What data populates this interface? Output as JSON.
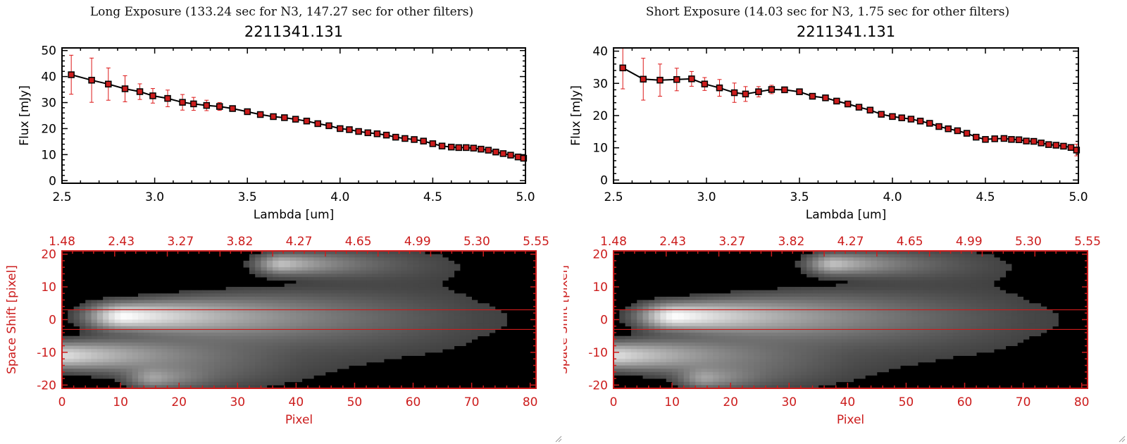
{
  "colors": {
    "axis_red": "#cc1c1c",
    "line": "#000000",
    "marker": "#cc1c1c",
    "errbar": "#dd1818",
    "guide": "#cc1c1c"
  },
  "panels": [
    {
      "title": "Long Exposure (133.24 sec for N3, 147.27 sec for other filters)",
      "icon": "resize-grip-icon"
    },
    {
      "title": "Short Exposure (14.03 sec for N3, 1.75 sec for other filters)",
      "icon": "resize-grip-icon"
    }
  ],
  "chart_data": [
    {
      "type": "line",
      "title": "2211341.131",
      "xlabel": "Lambda [um]",
      "ylabel": "Flux [mJy]",
      "xlim": [
        2.5,
        5.0
      ],
      "ylim": [
        -1,
        51
      ],
      "xticks": [
        2.5,
        3.0,
        3.5,
        4.0,
        4.5,
        5.0
      ],
      "xtick_labels": [
        "2.5",
        "3.0",
        "3.5",
        "4.0",
        "4.5",
        "5.0"
      ],
      "yticks": [
        0,
        10,
        20,
        30,
        40,
        50
      ],
      "ytick_labels": [
        "0",
        "10",
        "20",
        "30",
        "40",
        "50"
      ],
      "x": [
        2.55,
        2.66,
        2.75,
        2.84,
        2.92,
        2.99,
        3.07,
        3.15,
        3.21,
        3.28,
        3.35,
        3.42,
        3.5,
        3.57,
        3.64,
        3.7,
        3.76,
        3.82,
        3.88,
        3.94,
        4.0,
        4.05,
        4.1,
        4.15,
        4.2,
        4.25,
        4.3,
        4.35,
        4.4,
        4.45,
        4.5,
        4.55,
        4.6,
        4.64,
        4.68,
        4.72,
        4.76,
        4.8,
        4.84,
        4.88,
        4.92,
        4.96,
        4.99
      ],
      "y": [
        40.7,
        38.6,
        37.1,
        35.3,
        34.2,
        32.6,
        31.6,
        30.1,
        29.5,
        28.9,
        28.5,
        27.7,
        26.5,
        25.4,
        24.6,
        24.2,
        23.6,
        22.9,
        21.9,
        21.1,
        20.0,
        19.6,
        18.9,
        18.4,
        18.0,
        17.5,
        16.7,
        16.2,
        15.8,
        15.2,
        14.2,
        13.3,
        12.9,
        12.7,
        12.7,
        12.5,
        12.1,
        11.7,
        11.0,
        10.4,
        9.8,
        9.1,
        8.6
      ],
      "yerr": [
        7.5,
        8.5,
        6.2,
        5.0,
        3.0,
        2.8,
        3.2,
        3.0,
        2.5,
        2.0,
        1.5,
        1.0,
        0.8,
        0.7,
        0.7,
        0.6,
        0.6,
        0.6,
        0.6,
        0.5,
        0.5,
        0.5,
        0.5,
        0.5,
        0.5,
        0.5,
        0.5,
        0.5,
        0.5,
        0.5,
        0.5,
        0.5,
        0.5,
        0.5,
        0.5,
        0.5,
        0.5,
        0.5,
        0.5,
        0.5,
        0.5,
        0.5,
        0.6
      ]
    },
    {
      "type": "line",
      "title": "2211341.131",
      "xlabel": "Lambda [um]",
      "ylabel": "Flux [mJy]",
      "xlim": [
        2.5,
        5.0
      ],
      "ylim": [
        -1,
        41
      ],
      "xticks": [
        2.5,
        3.0,
        3.5,
        4.0,
        4.5,
        5.0
      ],
      "xtick_labels": [
        "2.5",
        "3.0",
        "3.5",
        "4.0",
        "4.5",
        "5.0"
      ],
      "yticks": [
        0,
        10,
        20,
        30,
        40
      ],
      "ytick_labels": [
        "0",
        "10",
        "20",
        "30",
        "40"
      ],
      "x": [
        2.55,
        2.66,
        2.75,
        2.84,
        2.92,
        2.99,
        3.07,
        3.15,
        3.21,
        3.28,
        3.35,
        3.42,
        3.5,
        3.57,
        3.64,
        3.7,
        3.76,
        3.82,
        3.88,
        3.94,
        4.0,
        4.05,
        4.1,
        4.15,
        4.2,
        4.25,
        4.3,
        4.35,
        4.4,
        4.45,
        4.5,
        4.55,
        4.6,
        4.64,
        4.68,
        4.72,
        4.76,
        4.8,
        4.84,
        4.88,
        4.92,
        4.96,
        4.99
      ],
      "y": [
        34.8,
        31.3,
        31.0,
        31.2,
        31.4,
        29.8,
        28.6,
        27.1,
        26.7,
        27.4,
        28.1,
        28.0,
        27.4,
        26.0,
        25.5,
        24.5,
        23.6,
        22.6,
        21.7,
        20.4,
        19.7,
        19.3,
        18.9,
        18.3,
        17.6,
        16.6,
        15.9,
        15.3,
        14.5,
        13.3,
        12.6,
        12.8,
        12.9,
        12.6,
        12.5,
        12.1,
        12.0,
        11.5,
        11.0,
        10.8,
        10.5,
        10.1,
        9.3
      ],
      "yerr": [
        6.5,
        6.5,
        5.0,
        3.5,
        2.3,
        2.0,
        2.6,
        3.0,
        2.3,
        1.6,
        1.3,
        0.8,
        0.7,
        0.6,
        0.5,
        0.5,
        0.5,
        0.5,
        0.5,
        0.5,
        0.5,
        0.5,
        0.5,
        0.5,
        0.5,
        0.5,
        0.5,
        0.5,
        0.5,
        0.5,
        0.5,
        0.5,
        0.5,
        0.5,
        0.5,
        0.5,
        0.5,
        0.5,
        0.5,
        0.5,
        0.5,
        0.5,
        1.8
      ]
    },
    {
      "type": "heatmap",
      "xlabel": "Pixel",
      "ylabel": "Space Shift [pixel]",
      "xlim": [
        0,
        81
      ],
      "ylim": [
        -21,
        21
      ],
      "xticks": [
        0,
        10,
        20,
        30,
        40,
        50,
        60,
        70,
        80
      ],
      "xtick_labels": [
        "0",
        "10",
        "20",
        "30",
        "40",
        "50",
        "60",
        "70",
        "80"
      ],
      "yticks": [
        -20,
        -10,
        0,
        10,
        20
      ],
      "ytick_labels": [
        "-20",
        "-10",
        "0",
        "10",
        "20"
      ],
      "top_tick_labels": [
        "1.48",
        "2.43",
        "3.27",
        "3.82",
        "4.27",
        "4.65",
        "4.99",
        "5.30",
        "5.55"
      ],
      "guide_lines": [
        3,
        -3
      ],
      "sources": [
        {
          "x0": 11,
          "y": 1,
          "peak": 1.0,
          "decay": 22,
          "sx": 4,
          "sy": 2.5,
          "tail": 60
        },
        {
          "x0": 1,
          "y": -11,
          "peak": 0.78,
          "decay": 18,
          "sx": 4,
          "sy": 2.5,
          "tail": 40
        },
        {
          "x0": 38,
          "y": 17,
          "peak": 0.62,
          "decay": 10,
          "sx": 3,
          "sy": 2.0,
          "tail": 35
        },
        {
          "x0": 16,
          "y": -18,
          "peak": 0.4,
          "decay": 8,
          "sx": 3,
          "sy": 2.0,
          "tail": 10
        }
      ]
    },
    {
      "type": "heatmap",
      "xlabel": "Pixel",
      "ylabel": "Space Shift [pixel]",
      "xlim": [
        0,
        81
      ],
      "ylim": [
        -21,
        21
      ],
      "xticks": [
        0,
        10,
        20,
        30,
        40,
        50,
        60,
        70,
        80
      ],
      "xtick_labels": [
        "0",
        "10",
        "20",
        "30",
        "40",
        "50",
        "60",
        "70",
        "80"
      ],
      "yticks": [
        -20,
        -10,
        0,
        10,
        20
      ],
      "ytick_labels": [
        "-20",
        "-10",
        "0",
        "10",
        "20"
      ],
      "top_tick_labels": [
        "1.48",
        "2.43",
        "3.27",
        "3.82",
        "4.27",
        "4.65",
        "4.99",
        "5.30",
        "5.55"
      ],
      "guide_lines": [
        3,
        -3
      ],
      "sources": [
        {
          "x0": 11,
          "y": 1,
          "peak": 1.0,
          "decay": 22,
          "sx": 4,
          "sy": 2.5,
          "tail": 60
        },
        {
          "x0": 1,
          "y": -11,
          "peak": 0.78,
          "decay": 18,
          "sx": 4,
          "sy": 2.5,
          "tail": 40
        },
        {
          "x0": 38,
          "y": 17,
          "peak": 0.62,
          "decay": 10,
          "sx": 3,
          "sy": 2.0,
          "tail": 35
        },
        {
          "x0": 16,
          "y": -18,
          "peak": 0.4,
          "decay": 8,
          "sx": 3,
          "sy": 2.0,
          "tail": 10
        }
      ]
    }
  ]
}
